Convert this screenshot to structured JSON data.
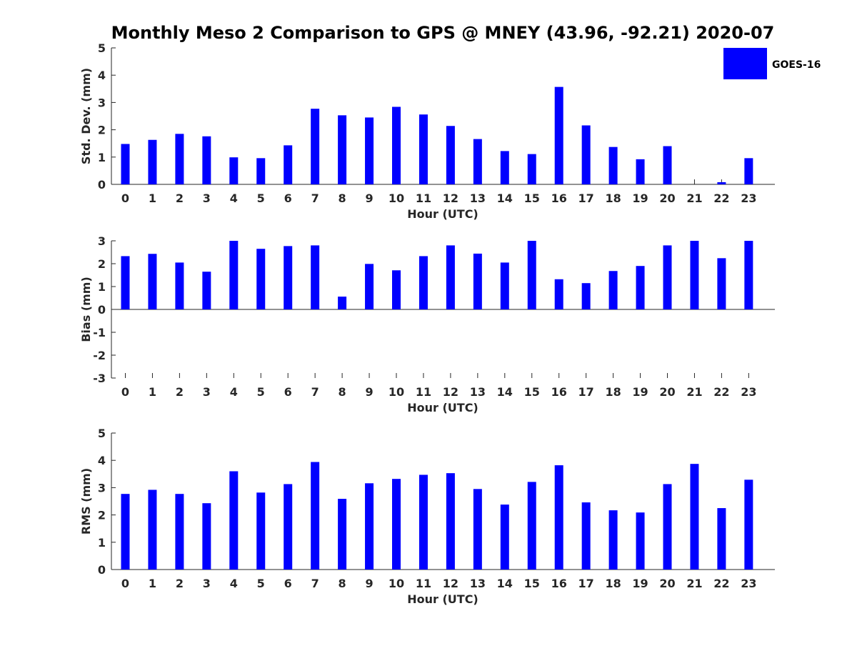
{
  "title": "Monthly Meso 2 Comparison to GPS @ MNEY (43.96, -92.21) 2020-07",
  "legend": {
    "label": "GOES-16",
    "color": "#0000ff",
    "placement": "top-right"
  },
  "chart_data": [
    {
      "type": "bar",
      "ylabel": "Std. Dev. (mm)",
      "xlabel": "Hour (UTC)",
      "ylim": [
        0,
        5
      ],
      "yticks": [
        0,
        1,
        2,
        3,
        4,
        5
      ],
      "categories": [
        "0",
        "1",
        "2",
        "3",
        "4",
        "5",
        "6",
        "7",
        "8",
        "9",
        "10",
        "11",
        "12",
        "13",
        "14",
        "15",
        "16",
        "17",
        "18",
        "19",
        "20",
        "21",
        "22",
        "23"
      ],
      "values": [
        1.48,
        1.63,
        1.85,
        1.76,
        0.99,
        0.96,
        1.43,
        2.77,
        2.53,
        2.45,
        2.84,
        2.56,
        2.14,
        1.66,
        1.22,
        1.11,
        3.57,
        2.16,
        1.37,
        0.92,
        1.4,
        0.0,
        0.08,
        0.96
      ],
      "series_name": "GOES-16",
      "grid": false
    },
    {
      "type": "bar",
      "ylabel": "Bias (mm)",
      "xlabel": "Hour (UTC)",
      "ylim": [
        -3,
        3
      ],
      "yticks": [
        -3,
        -2,
        -1,
        0,
        1,
        2,
        3
      ],
      "categories": [
        "0",
        "1",
        "2",
        "3",
        "4",
        "5",
        "6",
        "7",
        "8",
        "9",
        "10",
        "11",
        "12",
        "13",
        "14",
        "15",
        "16",
        "17",
        "18",
        "19",
        "20",
        "21",
        "22",
        "23"
      ],
      "values": [
        2.33,
        2.43,
        2.05,
        1.65,
        3.0,
        2.65,
        2.77,
        2.8,
        0.56,
        1.99,
        1.71,
        2.33,
        2.8,
        2.44,
        2.05,
        3.0,
        1.32,
        1.15,
        1.68,
        1.9,
        2.8,
        3.0,
        2.24,
        3.0
      ],
      "series_name": "GOES-16",
      "grid": false
    },
    {
      "type": "bar",
      "ylabel": "RMS (mm)",
      "xlabel": "Hour (UTC)",
      "ylim": [
        0,
        5
      ],
      "yticks": [
        0,
        1,
        2,
        3,
        4,
        5
      ],
      "categories": [
        "0",
        "1",
        "2",
        "3",
        "4",
        "5",
        "6",
        "7",
        "8",
        "9",
        "10",
        "11",
        "12",
        "13",
        "14",
        "15",
        "16",
        "17",
        "18",
        "19",
        "20",
        "21",
        "22",
        "23"
      ],
      "values": [
        2.77,
        2.92,
        2.77,
        2.43,
        3.6,
        2.82,
        3.13,
        3.94,
        2.59,
        3.16,
        3.32,
        3.47,
        3.53,
        2.95,
        2.38,
        3.21,
        3.82,
        2.46,
        2.17,
        2.09,
        3.13,
        3.87,
        2.25,
        3.29
      ],
      "series_name": "GOES-16",
      "grid": false
    }
  ]
}
